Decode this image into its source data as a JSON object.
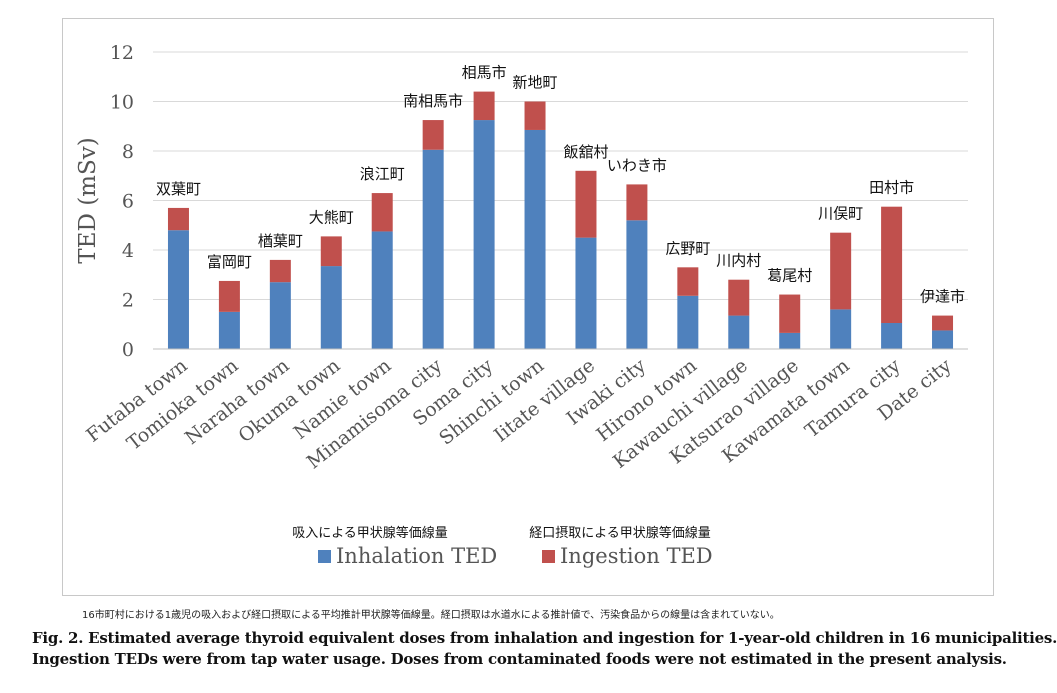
{
  "chart_data": {
    "type": "bar",
    "stacked": true,
    "ylabel": "TED (mSv)",
    "ylim": [
      0,
      12
    ],
    "yticks": [
      0,
      2,
      4,
      6,
      8,
      10,
      12
    ],
    "grid": true,
    "categories": [
      "Futaba town",
      "Tomioka town",
      "Naraha town",
      "Okuma town",
      "Namie town",
      "Minamisoma city",
      "Soma city",
      "Shinchi town",
      "Iitate village",
      "Iwaki city",
      "Hirono town",
      "Kawauchi village",
      "Katsurao village",
      "Kawamata town",
      "Tamura city",
      "Date city"
    ],
    "category_labels_jp": [
      "双葉町",
      "富岡町",
      "楢葉町",
      "大熊町",
      "浪江町",
      "南相馬市",
      "相馬市",
      "新地町",
      "飯舘村",
      "いわき市",
      "広野町",
      "川内村",
      "葛尾村",
      "川俣町",
      "田村市",
      "伊達市"
    ],
    "series": [
      {
        "name": "Inhalation TED",
        "name_jp": "吸入による甲状腺等価線量",
        "color": "#4f81bd",
        "values": [
          4.8,
          1.5,
          2.7,
          3.35,
          4.75,
          8.05,
          9.25,
          8.85,
          4.5,
          5.2,
          2.15,
          1.35,
          0.65,
          1.6,
          1.05,
          0.75
        ]
      },
      {
        "name": "Ingestion TED",
        "name_jp": "経口摂取による甲状腺等価線量",
        "color": "#c0504d",
        "values": [
          0.9,
          1.25,
          0.9,
          1.2,
          1.55,
          1.2,
          1.15,
          1.15,
          2.7,
          1.45,
          1.15,
          1.45,
          1.55,
          3.1,
          4.7,
          0.6
        ]
      }
    ],
    "legend_position": "bottom"
  },
  "note_jp": "16市町村における1歳児の吸入および経口摂取による平均推計甲状腺等価線量。経口摂取は水道水による推計値で、汚染食品からの線量は含まれていない。",
  "caption": {
    "line1": "Fig. 2.  Estimated average thyroid equivalent doses from inhalation and ingestion for 1-year-old children in 16 municipalities.",
    "line2": "Ingestion TEDs were from tap water usage. Doses from contaminated foods were not estimated in the present analysis."
  }
}
